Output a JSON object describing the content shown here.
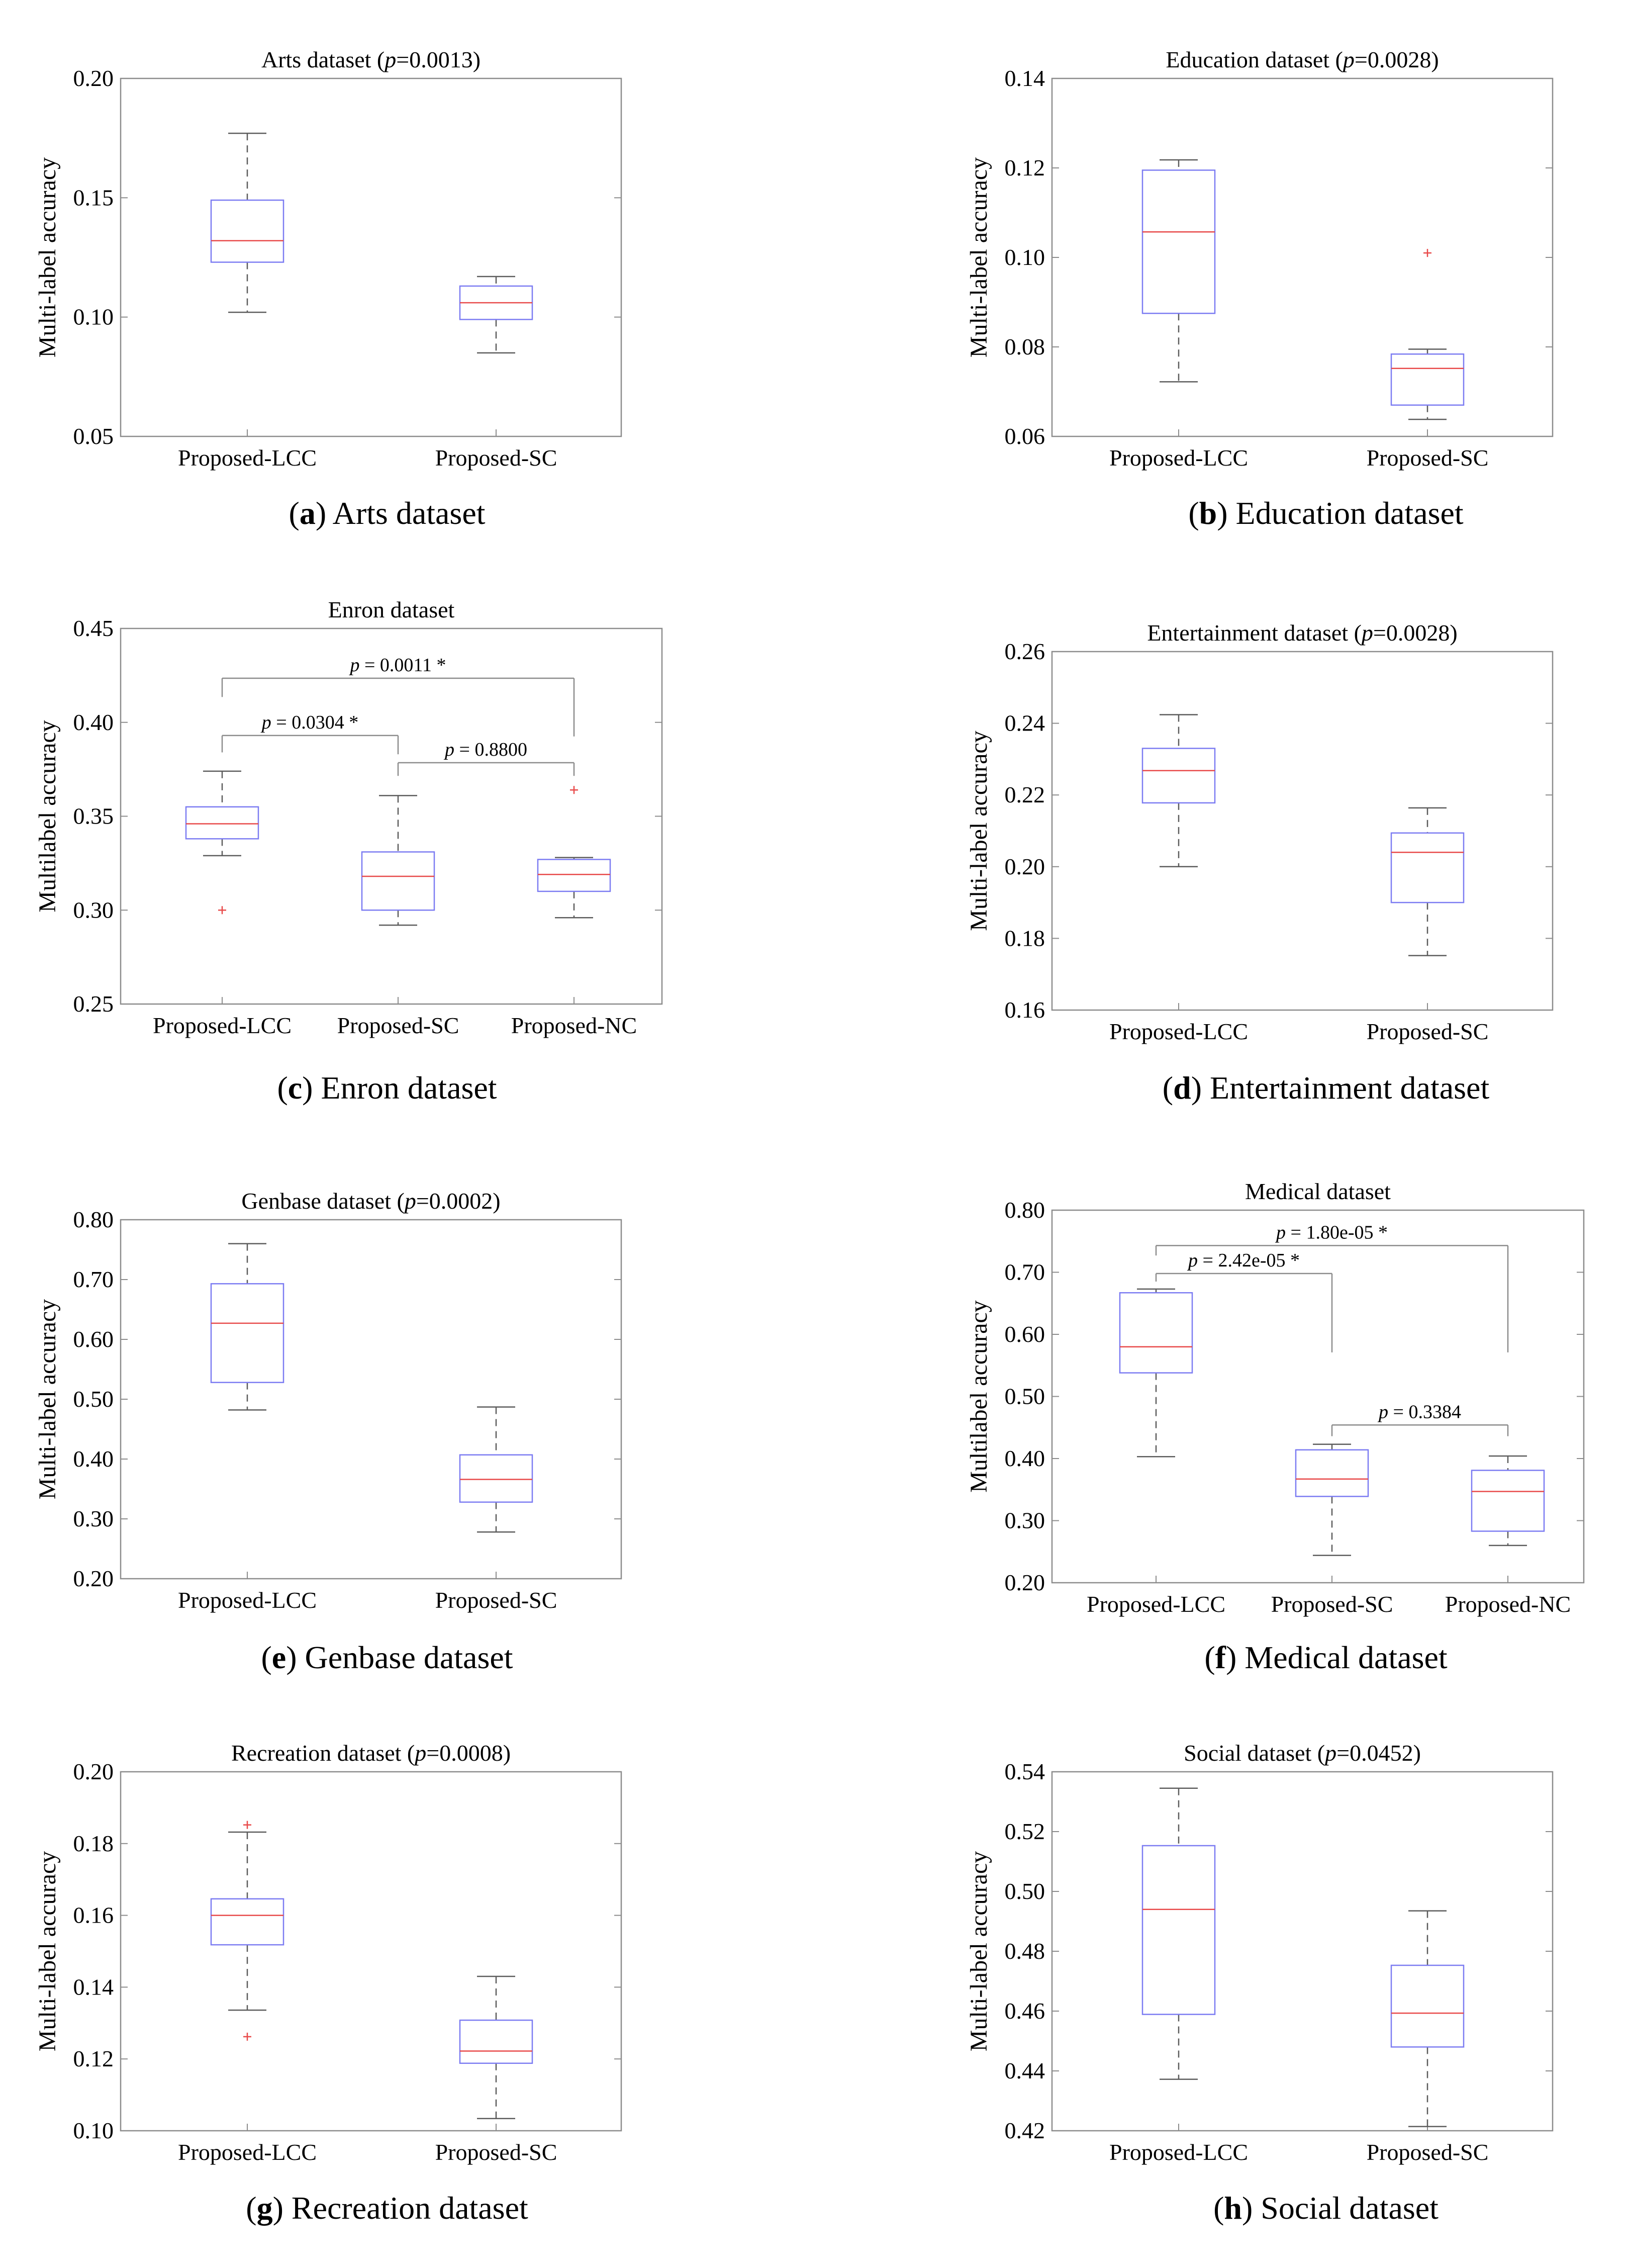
{
  "chart_data": [
    {
      "type": "box",
      "panel": "a",
      "caption_letter": "(a)",
      "caption_text": "Arts dataset",
      "title": "Arts dataset (p=0.0013)",
      "title_parts": [
        "Arts dataset (",
        "p",
        "=0.0013)"
      ],
      "ylabel": "Multi-label accuracy",
      "ylim": [
        0.05,
        0.2
      ],
      "yticks": [
        "0.05",
        "0.10",
        "0.15",
        "0.20"
      ],
      "categories": [
        "Proposed-LCC",
        "Proposed-SC"
      ],
      "boxes": [
        {
          "whisker_low": 0.102,
          "q1": 0.123,
          "median": 0.132,
          "q3": 0.149,
          "whisker_high": 0.177,
          "outliers": []
        },
        {
          "whisker_low": 0.085,
          "q1": 0.099,
          "median": 0.106,
          "q3": 0.113,
          "whisker_high": 0.117,
          "outliers": []
        }
      ],
      "annotations": []
    },
    {
      "type": "box",
      "panel": "b",
      "caption_letter": "(b)",
      "caption_text": "Education dataset",
      "title": "Education dataset (p=0.0028)",
      "title_parts": [
        "Education dataset (",
        "p",
        "=0.0028)"
      ],
      "ylabel": "Multi-label accuracy",
      "ylim": [
        0.06,
        0.14
      ],
      "yticks": [
        "0.06",
        "0.08",
        "0.10",
        "0.12",
        "0.14"
      ],
      "categories": [
        "Proposed-LCC",
        "Proposed-SC"
      ],
      "boxes": [
        {
          "whisker_low": 0.0722,
          "q1": 0.0875,
          "median": 0.1057,
          "q3": 0.1195,
          "whisker_high": 0.1218,
          "outliers": []
        },
        {
          "whisker_low": 0.0638,
          "q1": 0.067,
          "median": 0.0752,
          "q3": 0.0784,
          "whisker_high": 0.0795,
          "outliers": [
            0.101
          ]
        }
      ],
      "annotations": []
    },
    {
      "type": "box",
      "panel": "c",
      "caption_letter": "(c)",
      "caption_text": "Enron dataset",
      "title": "Enron dataset",
      "title_parts": [
        "Enron dataset",
        "",
        ""
      ],
      "ylabel": "Multilabel accuracy",
      "ylim": [
        0.25,
        0.45
      ],
      "yticks": [
        "0.25",
        "0.30",
        "0.35",
        "0.40",
        "0.45"
      ],
      "categories": [
        "Proposed-LCC",
        "Proposed-SC",
        "Proposed-NC"
      ],
      "boxes": [
        {
          "whisker_low": 0.329,
          "q1": 0.338,
          "median": 0.346,
          "q3": 0.355,
          "whisker_high": 0.374,
          "outliers": [
            0.3
          ]
        },
        {
          "whisker_low": 0.292,
          "q1": 0.3,
          "median": 0.318,
          "q3": 0.331,
          "whisker_high": 0.361,
          "outliers": []
        },
        {
          "whisker_low": 0.296,
          "q1": 0.31,
          "median": 0.319,
          "q3": 0.327,
          "whisker_high": 0.328,
          "outliers": [
            0.364
          ]
        }
      ],
      "annotations": [
        {
          "from": 0,
          "to": 2,
          "y": 0.4235,
          "drop_from": 0.4135,
          "drop_to": 0.3925,
          "text": "p = 0.0011 *",
          "text_parts": [
            "p",
            " = 0.0011 *"
          ]
        },
        {
          "from": 0,
          "to": 1,
          "y": 0.393,
          "drop_from": 0.384,
          "drop_to": 0.383,
          "text": "p = 0.0304 *",
          "text_parts": [
            "p",
            " = 0.0304 *"
          ]
        },
        {
          "from": 1,
          "to": 2,
          "y": 0.3785,
          "drop_from": 0.3715,
          "drop_to": 0.3715,
          "text": "p = 0.8800",
          "text_parts": [
            "p",
            " = 0.8800"
          ]
        }
      ]
    },
    {
      "type": "box",
      "panel": "d",
      "caption_letter": "(d)",
      "caption_text": "Entertainment dataset",
      "title": "Entertainment dataset (p=0.0028)",
      "title_parts": [
        "Entertainment dataset (",
        "p",
        "=0.0028)"
      ],
      "ylabel": "Multi-label accuracy",
      "ylim": [
        0.16,
        0.26
      ],
      "yticks": [
        "0.16",
        "0.18",
        "0.20",
        "0.22",
        "0.24",
        "0.26"
      ],
      "categories": [
        "Proposed-LCC",
        "Proposed-SC"
      ],
      "boxes": [
        {
          "whisker_low": 0.2,
          "q1": 0.2178,
          "median": 0.2268,
          "q3": 0.233,
          "whisker_high": 0.2424,
          "outliers": []
        },
        {
          "whisker_low": 0.1752,
          "q1": 0.19,
          "median": 0.204,
          "q3": 0.2094,
          "whisker_high": 0.2164,
          "outliers": []
        }
      ],
      "annotations": []
    },
    {
      "type": "box",
      "panel": "e",
      "caption_letter": "(e)",
      "caption_text": "Genbase dataset",
      "title": "Genbase dataset (p=0.0002)",
      "title_parts": [
        "Genbase dataset (",
        "p",
        "=0.0002)"
      ],
      "ylabel": "Multi-label accuracy",
      "ylim": [
        0.2,
        0.8
      ],
      "yticks": [
        "0.20",
        "0.30",
        "0.40",
        "0.50",
        "0.60",
        "0.70",
        "0.80"
      ],
      "categories": [
        "Proposed-LCC",
        "Proposed-SC"
      ],
      "boxes": [
        {
          "whisker_low": 0.482,
          "q1": 0.528,
          "median": 0.627,
          "q3": 0.693,
          "whisker_high": 0.76,
          "outliers": []
        },
        {
          "whisker_low": 0.278,
          "q1": 0.328,
          "median": 0.366,
          "q3": 0.407,
          "whisker_high": 0.487,
          "outliers": []
        }
      ],
      "annotations": []
    },
    {
      "type": "box",
      "panel": "f",
      "caption_letter": "(f)",
      "caption_text": "Medical dataset",
      "title": "Medical dataset",
      "title_parts": [
        "Medical dataset",
        "",
        ""
      ],
      "ylabel": "Multilabel accuracy",
      "ylim": [
        0.2,
        0.8
      ],
      "yticks": [
        "0.20",
        "0.30",
        "0.40",
        "0.50",
        "0.60",
        "0.70",
        "0.80"
      ],
      "categories": [
        "Proposed-LCC",
        "Proposed-SC",
        "Proposed-NC"
      ],
      "boxes": [
        {
          "whisker_low": 0.403,
          "q1": 0.538,
          "median": 0.58,
          "q3": 0.667,
          "whisker_high": 0.673,
          "outliers": []
        },
        {
          "whisker_low": 0.244,
          "q1": 0.339,
          "median": 0.367,
          "q3": 0.414,
          "whisker_high": 0.423,
          "outliers": []
        },
        {
          "whisker_low": 0.26,
          "q1": 0.283,
          "median": 0.347,
          "q3": 0.381,
          "whisker_high": 0.404,
          "outliers": []
        }
      ],
      "annotations": [
        {
          "from": 0,
          "to": 2,
          "y": 0.743,
          "drop_from": 0.727,
          "drop_to": 0.571,
          "text": "p = 1.80e-05 *",
          "text_parts": [
            "p",
            " = 1.80e-05 *"
          ]
        },
        {
          "from": 0,
          "to": 1,
          "y": 0.698,
          "drop_from": 0.685,
          "drop_to": 0.571,
          "text": "p = 2.42e-05 *",
          "text_parts": [
            "p",
            " = 2.42e-05 *"
          ]
        },
        {
          "from": 1,
          "to": 2,
          "y": 0.454,
          "drop_from": 0.436,
          "drop_to": 0.436,
          "text": "p = 0.3384",
          "text_parts": [
            "p",
            " = 0.3384"
          ]
        }
      ]
    },
    {
      "type": "box",
      "panel": "g",
      "caption_letter": "(g)",
      "caption_text": "Recreation dataset",
      "title": "Recreation dataset (p=0.0008)",
      "title_parts": [
        "Recreation dataset (",
        "p",
        "=0.0008)"
      ],
      "ylabel": "Multi-label accuracy",
      "ylim": [
        0.1,
        0.2
      ],
      "yticks": [
        "0.10",
        "0.12",
        "0.14",
        "0.16",
        "0.18",
        "0.20"
      ],
      "categories": [
        "Proposed-LCC",
        "Proposed-SC"
      ],
      "boxes": [
        {
          "whisker_low": 0.1336,
          "q1": 0.1518,
          "median": 0.16,
          "q3": 0.1646,
          "whisker_high": 0.1832,
          "outliers": [
            0.1852,
            0.1262
          ]
        },
        {
          "whisker_low": 0.1034,
          "q1": 0.1188,
          "median": 0.1222,
          "q3": 0.1308,
          "whisker_high": 0.143,
          "outliers": []
        }
      ],
      "annotations": []
    },
    {
      "type": "box",
      "panel": "h",
      "caption_letter": "(h)",
      "caption_text": "Social dataset",
      "title": "Social dataset (p=0.0452)",
      "title_parts": [
        "Social dataset (",
        "p",
        "=0.0452)"
      ],
      "ylabel": "Multi-label accuracy",
      "ylim": [
        0.42,
        0.54
      ],
      "yticks": [
        "0.42",
        "0.44",
        "0.46",
        "0.48",
        "0.50",
        "0.52",
        "0.54"
      ],
      "categories": [
        "Proposed-LCC",
        "Proposed-SC"
      ],
      "boxes": [
        {
          "whisker_low": 0.4372,
          "q1": 0.4589,
          "median": 0.494,
          "q3": 0.5153,
          "whisker_high": 0.5345,
          "outliers": []
        },
        {
          "whisker_low": 0.4214,
          "q1": 0.448,
          "median": 0.4593,
          "q3": 0.4753,
          "whisker_high": 0.4935,
          "outliers": []
        }
      ],
      "annotations": []
    }
  ],
  "colors": {
    "box_edge": "#7c7cf2",
    "median": "#e84a4a",
    "outlier": "#e84a4a",
    "whisker": "#5c5c5c",
    "axis": "#8c8c8c",
    "text": "#000000"
  }
}
